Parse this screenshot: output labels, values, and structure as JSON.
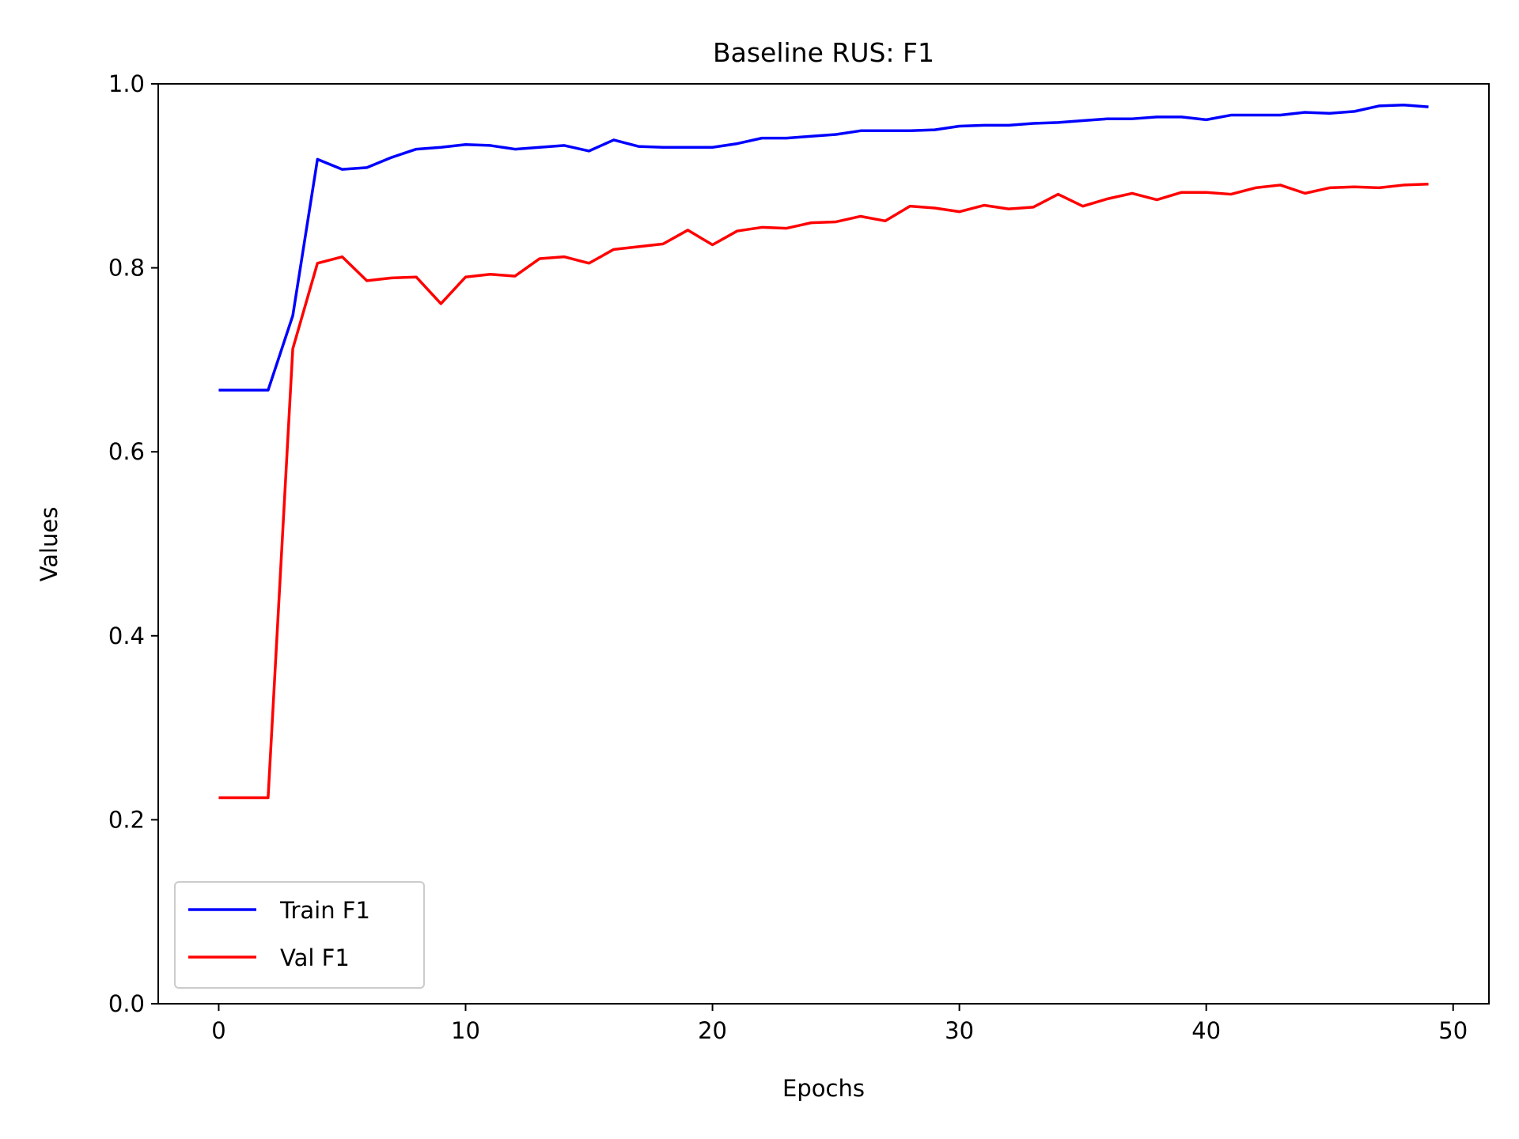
{
  "chart_data": {
    "type": "line",
    "title": "Baseline RUS: F1",
    "xlabel": "Epochs",
    "ylabel": "Values",
    "xlim": [
      -2.45,
      51.45
    ],
    "ylim": [
      0.0,
      1.0
    ],
    "xticks": [
      0,
      10,
      20,
      30,
      40,
      50
    ],
    "yticks": [
      0.0,
      0.2,
      0.4,
      0.6,
      0.8,
      1.0
    ],
    "xtick_labels": [
      "0",
      "10",
      "20",
      "30",
      "40",
      "50"
    ],
    "ytick_labels": [
      "0.0",
      "0.2",
      "0.4",
      "0.6",
      "0.8",
      "1.0"
    ],
    "grid": false,
    "legend_position": "lower-left",
    "x": [
      0,
      1,
      2,
      3,
      4,
      5,
      6,
      7,
      8,
      9,
      10,
      11,
      12,
      13,
      14,
      15,
      16,
      17,
      18,
      19,
      20,
      21,
      22,
      23,
      24,
      25,
      26,
      27,
      28,
      29,
      30,
      31,
      32,
      33,
      34,
      35,
      36,
      37,
      38,
      39,
      40,
      41,
      42,
      43,
      44,
      45,
      46,
      47,
      48,
      49
    ],
    "series": [
      {
        "name": "Train F1",
        "color": "#0000ff",
        "values": [
          0.667,
          0.667,
          0.667,
          0.748,
          0.918,
          0.907,
          0.909,
          0.92,
          0.929,
          0.931,
          0.934,
          0.933,
          0.929,
          0.931,
          0.933,
          0.927,
          0.939,
          0.932,
          0.931,
          0.931,
          0.931,
          0.935,
          0.941,
          0.941,
          0.943,
          0.945,
          0.949,
          0.949,
          0.949,
          0.95,
          0.954,
          0.955,
          0.955,
          0.957,
          0.958,
          0.96,
          0.962,
          0.962,
          0.964,
          0.964,
          0.961,
          0.966,
          0.966,
          0.966,
          0.969,
          0.968,
          0.97,
          0.976,
          0.977,
          0.975
        ]
      },
      {
        "name": "Val F1",
        "color": "#ff0000",
        "values": [
          0.224,
          0.224,
          0.224,
          0.712,
          0.805,
          0.812,
          0.786,
          0.789,
          0.79,
          0.761,
          0.79,
          0.793,
          0.791,
          0.81,
          0.812,
          0.805,
          0.82,
          0.823,
          0.826,
          0.841,
          0.825,
          0.84,
          0.844,
          0.843,
          0.849,
          0.85,
          0.856,
          0.851,
          0.867,
          0.865,
          0.861,
          0.868,
          0.864,
          0.866,
          0.88,
          0.867,
          0.875,
          0.881,
          0.874,
          0.882,
          0.882,
          0.88,
          0.887,
          0.89,
          0.881,
          0.887,
          0.888,
          0.887,
          0.89,
          0.891
        ]
      }
    ]
  }
}
